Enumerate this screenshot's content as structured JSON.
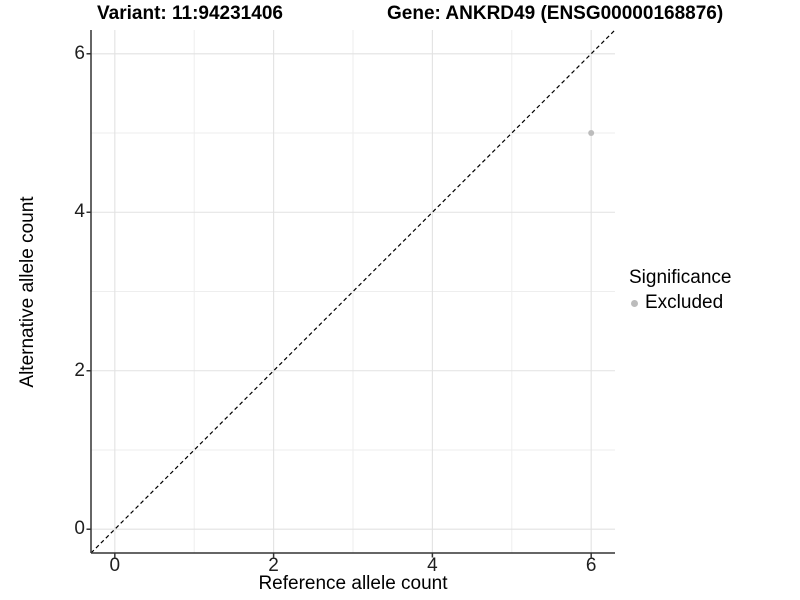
{
  "titles": {
    "variant": "Variant: 11:94231406",
    "gene": "Gene: ANKRD49 (ENSG00000168876)"
  },
  "chart_data": {
    "type": "scatter",
    "title": "Variant: 11:94231406 — Gene: ANKRD49 (ENSG00000168876)",
    "xlabel": "Reference allele count",
    "ylabel": "Alternative allele count",
    "xlim": [
      -0.3,
      6.3
    ],
    "ylim": [
      -0.3,
      6.3
    ],
    "x_ticks": [
      0,
      2,
      4,
      6
    ],
    "y_ticks": [
      0,
      2,
      4,
      6
    ],
    "x_minor_ticks": [
      1,
      3,
      5
    ],
    "y_minor_ticks": [
      1,
      3,
      5
    ],
    "grid": true,
    "identity_line": {
      "style": "dashed",
      "color": "#000000",
      "from": -0.3,
      "to": 6.3
    },
    "series": [
      {
        "name": "Excluded",
        "color": "#bcbcbc",
        "points": [
          {
            "x": 6,
            "y": 5
          }
        ]
      }
    ],
    "legend": {
      "title": "Significance",
      "position": "right",
      "items": [
        {
          "label": "Excluded",
          "color": "#bcbcbc"
        }
      ]
    }
  }
}
